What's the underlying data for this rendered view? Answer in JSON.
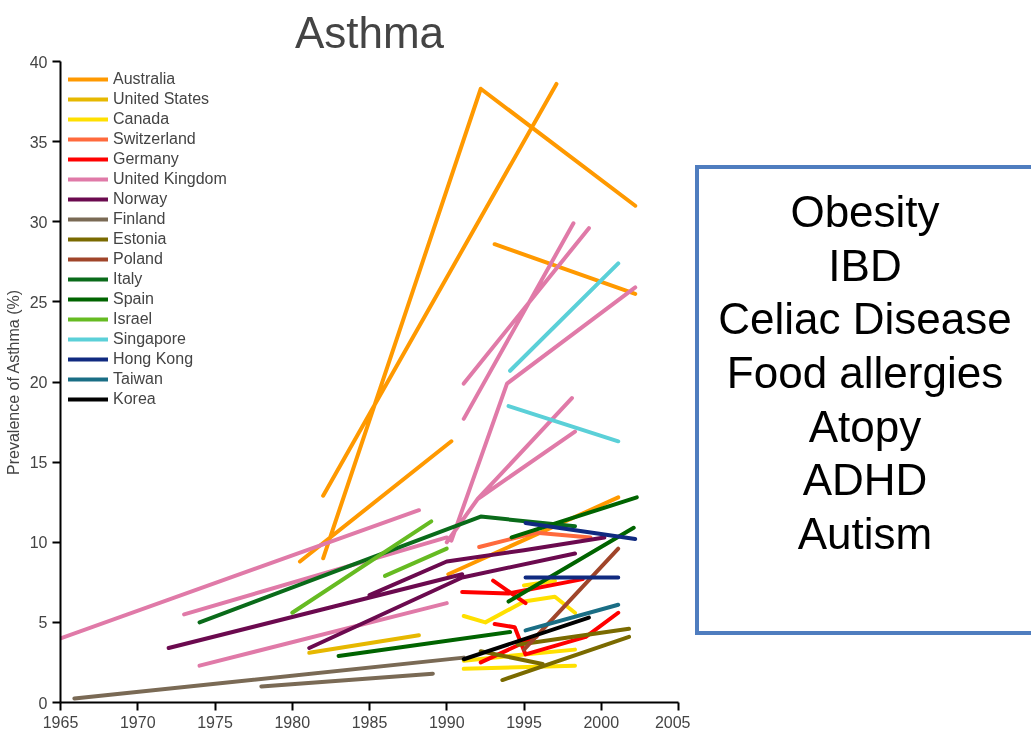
{
  "chart_data": {
    "type": "line",
    "title": "Asthma",
    "ylabel": "Prevalence of Asthma (%)",
    "xlim": [
      1965,
      2005
    ],
    "xticks": [
      1965,
      1970,
      1975,
      1980,
      1985,
      1990,
      1995,
      2000,
      2005
    ],
    "ylim": [
      0,
      40
    ],
    "yticks": [
      0,
      5,
      10,
      15,
      20,
      25,
      30,
      35,
      40
    ],
    "grid": false,
    "legend": "top left",
    "marker": "none",
    "line_style": "solid",
    "annotations": [
      "Obesity",
      "IBD",
      "Celiac Disease",
      "Food allergies",
      "Atopy",
      "ADHD",
      "Autism"
    ],
    "series": [
      {
        "name": "Australia",
        "color": "#ff9900",
        "x": [
          1982,
          1992.2,
          2002.2,
          null,
          1982,
          1997.1,
          null,
          1980.5,
          1990.3,
          null,
          1993.1,
          2002.2,
          null,
          1990.1,
          2001.1
        ],
        "values": [
          9.0,
          38.3,
          31.0,
          null,
          12.9,
          38.6,
          null,
          8.8,
          16.3,
          null,
          28.6,
          25.5,
          null,
          8.0,
          12.8
        ]
      },
      {
        "name": "United States",
        "color": "#e6b800",
        "x": [
          1981.1,
          1988.2
        ],
        "values": [
          3.1,
          4.2
        ]
      },
      {
        "name": "Canada",
        "color": "#ffe000",
        "x": [
          1991.1,
          1998.3,
          null,
          1991.1,
          1995,
          1998.3,
          null,
          1991.1,
          1992.5,
          1995,
          1997,
          1998.3,
          null,
          1995,
          1997
        ],
        "values": [
          2.1,
          2.3,
          null,
          2.6,
          3.0,
          3.3,
          null,
          5.4,
          5.0,
          6.3,
          6.6,
          5.6,
          null,
          7.3,
          7.6
        ]
      },
      {
        "name": "Switzerland",
        "color": "#ff6a3d",
        "x": [
          1992.1,
          1995.8,
          1999.3
        ],
        "values": [
          9.7,
          10.6,
          10.3
        ]
      },
      {
        "name": "Germany",
        "color": "#ff0000",
        "x": [
          1991,
          1994,
          1998.8,
          null,
          1993,
          1995.1,
          null,
          1993.1,
          1994.4,
          1995.1,
          1999,
          2001.1,
          null,
          1992.2,
          1995.8
        ],
        "values": [
          6.9,
          6.8,
          7.7,
          null,
          7.6,
          6.2,
          null,
          4.9,
          4.7,
          3.0,
          4.1,
          5.6,
          null,
          2.5,
          4.1
        ]
      },
      {
        "name": "United Kingdom",
        "color": "#e07aa8",
        "x": [
          1965,
          1988.2,
          null,
          1973,
          1990,
          null,
          1974,
          1990,
          null,
          1990.3,
          1993.9,
          2002.2,
          null,
          1991.1,
          1998.2,
          null,
          1991.1,
          1999.2,
          null,
          1990,
          1992,
          1998.1,
          null,
          1992,
          1998.3
        ],
        "values": [
          4.0,
          12.0,
          null,
          5.5,
          10.3,
          null,
          2.3,
          6.2,
          null,
          10.1,
          19.9,
          25.9,
          null,
          17.7,
          29.9,
          null,
          19.9,
          29.6,
          null,
          10.0,
          12.7,
          19.0,
          null,
          12.7,
          16.9
        ]
      },
      {
        "name": "Norway",
        "color": "#6b0a4f",
        "x": [
          1972,
          1991,
          null,
          1985,
          1990,
          1995,
          2000.2,
          null,
          1981.1,
          1991,
          1998.3
        ],
        "values": [
          3.4,
          8.0,
          null,
          6.7,
          8.8,
          9.5,
          10.3,
          null,
          3.4,
          7.8,
          9.3
        ]
      },
      {
        "name": "Finland",
        "color": "#7a6a55",
        "x": [
          1965.9,
          1991.1,
          null,
          1978,
          1989.1
        ],
        "values": [
          0.25,
          2.8,
          null,
          1.0,
          1.8
        ]
      },
      {
        "name": "Estonia",
        "color": "#7a6a00",
        "x": [
          1992.2,
          1996.2,
          null,
          1993.6,
          2001.8,
          null,
          1994.6,
          2001.8
        ],
        "values": [
          3.2,
          2.4,
          null,
          1.4,
          4.1,
          null,
          3.6,
          4.6
        ]
      },
      {
        "name": "Poland",
        "color": "#a0452a",
        "x": [
          1995,
          2001.1
        ],
        "values": [
          3.3,
          9.6
        ]
      },
      {
        "name": "Italy",
        "color": "#0a6b1a",
        "x": [
          1974,
          1992.2,
          1998.3
        ],
        "values": [
          5.0,
          11.6,
          11.0
        ]
      },
      {
        "name": "Spain",
        "color": "#006400",
        "x": [
          1983,
          1994.1,
          null,
          1994,
          2002.1,
          null,
          1994.2,
          2002.3
        ],
        "values": [
          2.9,
          4.4,
          null,
          6.3,
          10.9,
          null,
          10.3,
          12.8
        ]
      },
      {
        "name": "Israel",
        "color": "#66bb22",
        "x": [
          1980,
          1989,
          null,
          1986,
          1990
        ],
        "values": [
          5.6,
          11.3,
          null,
          7.9,
          9.6
        ]
      },
      {
        "name": "Singapore",
        "color": "#5bd0d8",
        "x": [
          1994.1,
          2001.1,
          null,
          1994,
          2001.1
        ],
        "values": [
          20.7,
          27.4,
          null,
          18.5,
          16.3
        ]
      },
      {
        "name": "Hong Kong",
        "color": "#102a80",
        "x": [
          1995.1,
          2002.2,
          null,
          1995.1,
          2001.1
        ],
        "values": [
          11.2,
          10.2,
          null,
          7.8,
          7.8
        ]
      },
      {
        "name": "Taiwan",
        "color": "#1a6e85",
        "x": [
          1995.1,
          2001.1
        ],
        "values": [
          4.5,
          6.1
        ]
      },
      {
        "name": "Korea",
        "color": "#000000",
        "x": [
          1991.1,
          1999.2
        ],
        "values": [
          2.7,
          5.3
        ]
      }
    ]
  }
}
